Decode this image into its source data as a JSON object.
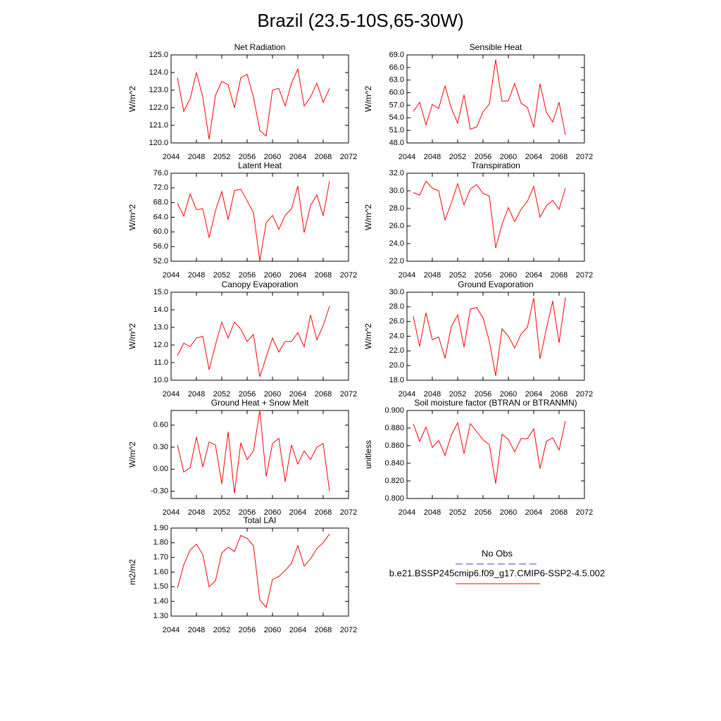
{
  "title": "Brazil (23.5-10S,65-30W)",
  "legend": [
    {
      "name": "No Obs",
      "color": "#3a3ad0",
      "dash": true
    },
    {
      "name": "b.e21.BSSP245cmip6.f09_g17.CMIP6-SSP2-4.5.002",
      "color": "#ff0000",
      "dash": false
    }
  ],
  "chart_data": [
    {
      "type": "line",
      "title": "Net Radiation",
      "ylabel": "W/m^2",
      "x": [
        2045,
        2046,
        2047,
        2048,
        2049,
        2050,
        2051,
        2052,
        2053,
        2054,
        2055,
        2056,
        2057,
        2058,
        2059,
        2060,
        2061,
        2062,
        2063,
        2064,
        2065,
        2066,
        2067,
        2068,
        2069
      ],
      "values": [
        123.7,
        121.8,
        122.5,
        124.0,
        122.6,
        120.2,
        122.7,
        123.5,
        123.3,
        122.0,
        123.7,
        123.9,
        122.6,
        120.7,
        120.4,
        123.0,
        123.1,
        122.1,
        123.4,
        124.2,
        122.1,
        122.6,
        123.4,
        122.3,
        123.1
      ],
      "color": "#ff0000",
      "xlim": [
        2044,
        2072
      ],
      "xticks": [
        2044,
        2048,
        2052,
        2056,
        2060,
        2064,
        2068,
        2072
      ],
      "ylim": [
        120,
        125
      ],
      "yticks": [
        {
          "value": 120,
          "label": "120.0"
        },
        {
          "value": 121,
          "label": "121.0"
        },
        {
          "value": 122,
          "label": "122.0"
        },
        {
          "value": 123,
          "label": "123.0"
        },
        {
          "value": 124,
          "label": "124.0"
        },
        {
          "value": 125,
          "label": "125.0"
        }
      ]
    },
    {
      "type": "line",
      "title": "Sensible Heat",
      "ylabel": "W/m^2",
      "x": [
        2045,
        2046,
        2047,
        2048,
        2049,
        2050,
        2051,
        2052,
        2053,
        2054,
        2055,
        2056,
        2057,
        2058,
        2059,
        2060,
        2061,
        2062,
        2063,
        2064,
        2065,
        2066,
        2067,
        2068,
        2069
      ],
      "values": [
        55.5,
        57.7,
        52.3,
        57.2,
        56.2,
        61.6,
        56.3,
        52.7,
        59.5,
        51.3,
        51.8,
        55.4,
        57.3,
        67.9,
        57.9,
        58.1,
        62.2,
        57.5,
        56.5,
        51.7,
        62.1,
        55.3,
        53.0,
        57.7,
        49.9
      ],
      "color": "#ff0000",
      "xlim": [
        2044,
        2072
      ],
      "xticks": [
        2044,
        2048,
        2052,
        2056,
        2060,
        2064,
        2068,
        2072
      ],
      "ylim": [
        48,
        69
      ],
      "yticks": [
        {
          "value": 48,
          "label": "48.0"
        },
        {
          "value": 51,
          "label": "51.0"
        },
        {
          "value": 54,
          "label": "54.0"
        },
        {
          "value": 57,
          "label": "57.0"
        },
        {
          "value": 60,
          "label": "60.0"
        },
        {
          "value": 63,
          "label": "63.0"
        },
        {
          "value": 66,
          "label": "66.0"
        },
        {
          "value": 69,
          "label": "69.0"
        }
      ]
    },
    {
      "type": "line",
      "title": "Latent Heat",
      "ylabel": "W/m^2",
      "x": [
        2045,
        2046,
        2047,
        2048,
        2049,
        2050,
        2051,
        2052,
        2053,
        2054,
        2055,
        2056,
        2057,
        2058,
        2059,
        2060,
        2061,
        2062,
        2063,
        2064,
        2065,
        2066,
        2067,
        2068,
        2069
      ],
      "values": [
        67.8,
        64.3,
        70.3,
        66.1,
        66.3,
        58.4,
        65.8,
        71.0,
        63.3,
        71.3,
        71.6,
        68.5,
        65.2,
        52.1,
        62.5,
        64.5,
        60.7,
        64.5,
        66.3,
        72.5,
        59.8,
        67.2,
        70.1,
        64.4,
        73.8
      ],
      "color": "#ff0000",
      "xlim": [
        2044,
        2072
      ],
      "xticks": [
        2044,
        2048,
        2052,
        2056,
        2060,
        2064,
        2068,
        2072
      ],
      "ylim": [
        52,
        76
      ],
      "yticks": [
        {
          "value": 52,
          "label": "52.0"
        },
        {
          "value": 56,
          "label": "56.0"
        },
        {
          "value": 60,
          "label": "60.0"
        },
        {
          "value": 64,
          "label": "64.0"
        },
        {
          "value": 68,
          "label": "68.0"
        },
        {
          "value": 72,
          "label": "72.0"
        },
        {
          "value": 76,
          "label": "76.0"
        }
      ]
    },
    {
      "type": "line",
      "title": "Transpiration",
      "ylabel": "W/m^2",
      "x": [
        2045,
        2046,
        2047,
        2048,
        2049,
        2050,
        2051,
        2052,
        2053,
        2054,
        2055,
        2056,
        2057,
        2058,
        2059,
        2060,
        2061,
        2062,
        2063,
        2064,
        2065,
        2066,
        2067,
        2068,
        2069
      ],
      "values": [
        29.8,
        29.5,
        31.1,
        30.3,
        30.0,
        26.7,
        28.6,
        30.8,
        28.4,
        30.2,
        30.7,
        29.7,
        29.4,
        23.5,
        26.2,
        28.1,
        26.5,
        27.9,
        28.8,
        30.5,
        27.0,
        28.3,
        28.9,
        27.9,
        30.3
      ],
      "color": "#ff0000",
      "xlim": [
        2044,
        2072
      ],
      "xticks": [
        2044,
        2048,
        2052,
        2056,
        2060,
        2064,
        2068,
        2072
      ],
      "ylim": [
        22,
        32
      ],
      "yticks": [
        {
          "value": 22,
          "label": "22.0"
        },
        {
          "value": 24,
          "label": "24.0"
        },
        {
          "value": 26,
          "label": "26.0"
        },
        {
          "value": 28,
          "label": "28.0"
        },
        {
          "value": 30,
          "label": "30.0"
        },
        {
          "value": 32,
          "label": "32.0"
        }
      ]
    },
    {
      "type": "line",
      "title": "Canopy Evaporation",
      "ylabel": "W/m^2",
      "x": [
        2045,
        2046,
        2047,
        2048,
        2049,
        2050,
        2051,
        2052,
        2053,
        2054,
        2055,
        2056,
        2057,
        2058,
        2059,
        2060,
        2061,
        2062,
        2063,
        2064,
        2065,
        2066,
        2067,
        2068,
        2069
      ],
      "values": [
        11.4,
        12.1,
        11.9,
        12.4,
        12.5,
        10.6,
        12.0,
        13.3,
        12.4,
        13.3,
        12.9,
        12.2,
        12.6,
        10.2,
        11.3,
        12.4,
        11.6,
        12.2,
        12.2,
        12.7,
        11.9,
        13.7,
        12.3,
        13.1,
        14.2
      ],
      "color": "#ff0000",
      "xlim": [
        2044,
        2072
      ],
      "xticks": [
        2044,
        2048,
        2052,
        2056,
        2060,
        2064,
        2068,
        2072
      ],
      "ylim": [
        10,
        15
      ],
      "yticks": [
        {
          "value": 10,
          "label": "10.0"
        },
        {
          "value": 11,
          "label": "11.0"
        },
        {
          "value": 12,
          "label": "12.0"
        },
        {
          "value": 13,
          "label": "13.0"
        },
        {
          "value": 14,
          "label": "14.0"
        },
        {
          "value": 15,
          "label": "15.0"
        }
      ]
    },
    {
      "type": "line",
      "title": "Ground Evaporation",
      "ylabel": "W/m^2",
      "x": [
        2045,
        2046,
        2047,
        2048,
        2049,
        2050,
        2051,
        2052,
        2053,
        2054,
        2055,
        2056,
        2057,
        2058,
        2059,
        2060,
        2061,
        2062,
        2063,
        2064,
        2065,
        2066,
        2067,
        2068,
        2069
      ],
      "values": [
        26.7,
        22.6,
        27.2,
        23.5,
        23.9,
        21.0,
        25.3,
        26.9,
        22.5,
        27.7,
        27.9,
        26.5,
        23.3,
        18.6,
        25.0,
        24.0,
        22.4,
        24.3,
        25.2,
        29.2,
        20.9,
        25.0,
        28.8,
        23.1,
        29.3
      ],
      "color": "#ff0000",
      "xlim": [
        2044,
        2072
      ],
      "xticks": [
        2044,
        2048,
        2052,
        2056,
        2060,
        2064,
        2068,
        2072
      ],
      "ylim": [
        18,
        30
      ],
      "yticks": [
        {
          "value": 18,
          "label": "18.0"
        },
        {
          "value": 20,
          "label": "20.0"
        },
        {
          "value": 22,
          "label": "22.0"
        },
        {
          "value": 24,
          "label": "24.0"
        },
        {
          "value": 26,
          "label": "26.0"
        },
        {
          "value": 28,
          "label": "28.0"
        },
        {
          "value": 30,
          "label": "30.0"
        }
      ]
    },
    {
      "type": "line",
      "title": "Ground Heat + Snow Melt",
      "ylabel": "W/m^2",
      "x": [
        2045,
        2046,
        2047,
        2048,
        2049,
        2050,
        2051,
        2052,
        2053,
        2054,
        2055,
        2056,
        2057,
        2058,
        2059,
        2060,
        2061,
        2062,
        2063,
        2064,
        2065,
        2066,
        2067,
        2068,
        2069
      ],
      "values": [
        0.33,
        -0.04,
        0.02,
        0.44,
        0.03,
        0.37,
        0.33,
        -0.2,
        0.51,
        -0.33,
        0.36,
        0.13,
        0.25,
        0.8,
        -0.1,
        0.35,
        0.42,
        -0.17,
        0.33,
        0.07,
        0.25,
        0.13,
        0.3,
        0.35,
        -0.3
      ],
      "color": "#ff0000",
      "xlim": [
        2044,
        2072
      ],
      "xticks": [
        2044,
        2048,
        2052,
        2056,
        2060,
        2064,
        2068,
        2072
      ],
      "ylim": [
        -0.4,
        0.8
      ],
      "yticks": [
        {
          "value": -0.3,
          "label": "-0.30"
        },
        {
          "value": 0,
          "label": "0.00"
        },
        {
          "value": 0.3,
          "label": "0.30"
        },
        {
          "value": 0.6,
          "label": "0.60"
        }
      ]
    },
    {
      "type": "line",
      "title": "Soil moisture factor (BTRAN or BTRANMN)",
      "ylabel": "unitless",
      "x": [
        2045,
        2046,
        2047,
        2048,
        2049,
        2050,
        2051,
        2052,
        2053,
        2054,
        2055,
        2056,
        2057,
        2058,
        2059,
        2060,
        2061,
        2062,
        2063,
        2064,
        2065,
        2066,
        2067,
        2068,
        2069
      ],
      "values": [
        0.885,
        0.865,
        0.881,
        0.858,
        0.866,
        0.849,
        0.872,
        0.886,
        0.851,
        0.885,
        0.876,
        0.867,
        0.861,
        0.817,
        0.873,
        0.867,
        0.853,
        0.868,
        0.868,
        0.879,
        0.834,
        0.865,
        0.869,
        0.855,
        0.888
      ],
      "color": "#ff0000",
      "xlim": [
        2044,
        2072
      ],
      "xticks": [
        2044,
        2048,
        2052,
        2056,
        2060,
        2064,
        2068,
        2072
      ],
      "ylim": [
        0.8,
        0.9
      ],
      "yticks": [
        {
          "value": 0.8,
          "label": "0.800"
        },
        {
          "value": 0.82,
          "label": "0.820"
        },
        {
          "value": 0.84,
          "label": "0.840"
        },
        {
          "value": 0.86,
          "label": "0.860"
        },
        {
          "value": 0.88,
          "label": "0.880"
        },
        {
          "value": 0.9,
          "label": "0.900"
        }
      ]
    },
    {
      "type": "line",
      "title": "Total LAI",
      "ylabel": "m2/m2",
      "x": [
        2045,
        2046,
        2047,
        2048,
        2049,
        2050,
        2051,
        2052,
        2053,
        2054,
        2055,
        2056,
        2057,
        2058,
        2059,
        2060,
        2061,
        2062,
        2063,
        2064,
        2065,
        2066,
        2067,
        2068,
        2069
      ],
      "values": [
        1.49,
        1.65,
        1.75,
        1.79,
        1.72,
        1.5,
        1.54,
        1.73,
        1.77,
        1.74,
        1.85,
        1.83,
        1.78,
        1.41,
        1.36,
        1.55,
        1.57,
        1.61,
        1.66,
        1.78,
        1.64,
        1.69,
        1.76,
        1.8,
        1.86
      ],
      "color": "#ff0000",
      "xlim": [
        2044,
        2072
      ],
      "xticks": [
        2044,
        2048,
        2052,
        2056,
        2060,
        2064,
        2068,
        2072
      ],
      "ylim": [
        1.3,
        1.9
      ],
      "yticks": [
        {
          "value": 1.3,
          "label": "1.30"
        },
        {
          "value": 1.4,
          "label": "1.40"
        },
        {
          "value": 1.5,
          "label": "1.50"
        },
        {
          "value": 1.6,
          "label": "1.60"
        },
        {
          "value": 1.7,
          "label": "1.70"
        },
        {
          "value": 1.8,
          "label": "1.80"
        },
        {
          "value": 1.9,
          "label": "1.90"
        }
      ]
    }
  ]
}
